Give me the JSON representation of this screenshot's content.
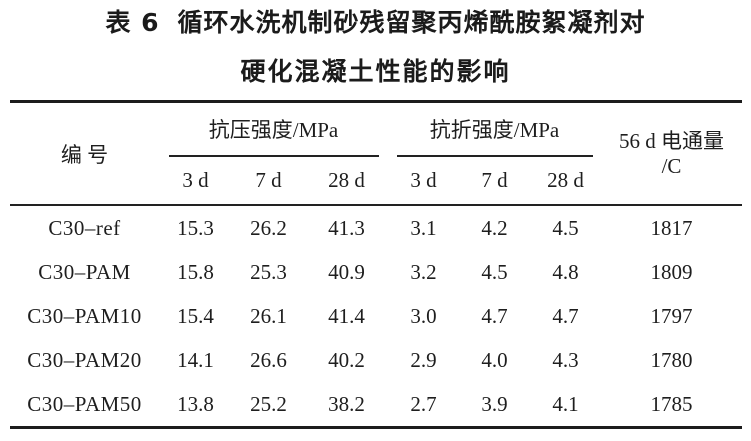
{
  "title": {
    "label": "表 6",
    "line1_text": "循环水洗机制砂残留聚丙烯酰胺絮凝剂对",
    "line2_text": "硬化混凝土性能的影响"
  },
  "table": {
    "header": {
      "id_label": "编  号",
      "compressive_group": "抗压强度/MPa",
      "flexural_group": "抗折强度/MPa",
      "flux_line1": "56 d 电通量",
      "flux_line2": "/C",
      "sub": [
        "3 d",
        "7 d",
        "28 d",
        "3 d",
        "7 d",
        "28 d"
      ]
    },
    "rows": [
      {
        "cells": [
          "C30–ref",
          "15.3",
          "26.2",
          "41.3",
          "3.1",
          "4.2",
          "4.5",
          "1817"
        ]
      },
      {
        "cells": [
          "C30–PAM",
          "15.8",
          "25.3",
          "40.9",
          "3.2",
          "4.5",
          "4.8",
          "1809"
        ]
      },
      {
        "cells": [
          "C30–PAM10",
          "15.4",
          "26.1",
          "41.4",
          "3.0",
          "4.7",
          "4.7",
          "1797"
        ]
      },
      {
        "cells": [
          "C30–PAM20",
          "14.1",
          "26.6",
          "40.2",
          "2.9",
          "4.0",
          "4.3",
          "1780"
        ]
      },
      {
        "cells": [
          "C30–PAM50",
          "13.8",
          "25.2",
          "38.2",
          "2.7",
          "3.9",
          "4.1",
          "1785"
        ]
      }
    ]
  },
  "colors": {
    "background": "#ffffff",
    "text": "#1e1e1e",
    "rule": "#1c1c1c"
  }
}
